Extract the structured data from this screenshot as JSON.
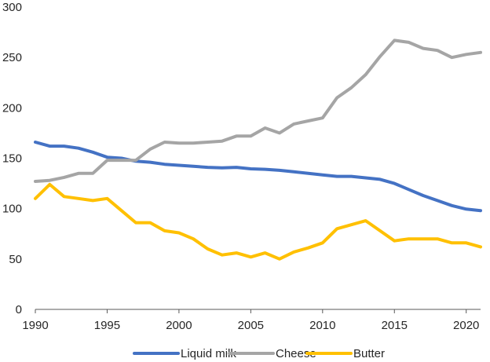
{
  "chart_data": {
    "type": "line",
    "title": "",
    "xlabel": "",
    "ylabel": "",
    "xlim": [
      1990,
      2021
    ],
    "ylim": [
      0,
      300
    ],
    "grid": false,
    "legend_position": "bottom",
    "x_ticks": [
      1990,
      1995,
      2000,
      2005,
      2010,
      2015,
      2020
    ],
    "x_tick_labels": [
      "1990",
      "1995",
      "2000",
      "2005",
      "2010",
      "2015",
      "2020"
    ],
    "y_ticks": [
      0,
      50,
      100,
      150,
      200,
      250,
      300
    ],
    "y_tick_labels": [
      "0",
      "50",
      "100",
      "150",
      "200",
      "250",
      "300"
    ],
    "x": [
      1990,
      1991,
      1992,
      1993,
      1994,
      1995,
      1996,
      1997,
      1998,
      1999,
      2000,
      2001,
      2002,
      2003,
      2004,
      2005,
      2006,
      2007,
      2008,
      2009,
      2010,
      2011,
      2012,
      2013,
      2014,
      2015,
      2016,
      2017,
      2018,
      2019,
      2020,
      2021
    ],
    "series": [
      {
        "name": "Liquid milk",
        "color": "#4472C4",
        "values": [
          166,
          162,
          162,
          160,
          156,
          151,
          150,
          147,
          146,
          144,
          143,
          142,
          141,
          140.5,
          141,
          139.5,
          139,
          138,
          136.5,
          135,
          133.5,
          132,
          132,
          130.5,
          129,
          125,
          119,
          113,
          108,
          103,
          99.5,
          98
        ]
      },
      {
        "name": "Cheese",
        "color": "#A5A5A5",
        "values": [
          127,
          128,
          131,
          135,
          135,
          148,
          148,
          148,
          159,
          166,
          165,
          165,
          166,
          167,
          172,
          172,
          180,
          175,
          184,
          187,
          190,
          210,
          220,
          233,
          251,
          267,
          265,
          259,
          257,
          250,
          253,
          255
        ]
      },
      {
        "name": "Butter",
        "color": "#FFC000",
        "values": [
          110,
          124,
          112,
          110,
          108,
          110,
          98,
          86,
          86,
          78,
          76,
          70,
          60,
          54,
          56,
          52,
          56,
          50,
          57,
          61,
          66,
          80,
          84,
          88,
          78,
          68,
          70,
          70,
          70,
          66,
          66,
          62
        ]
      }
    ]
  }
}
